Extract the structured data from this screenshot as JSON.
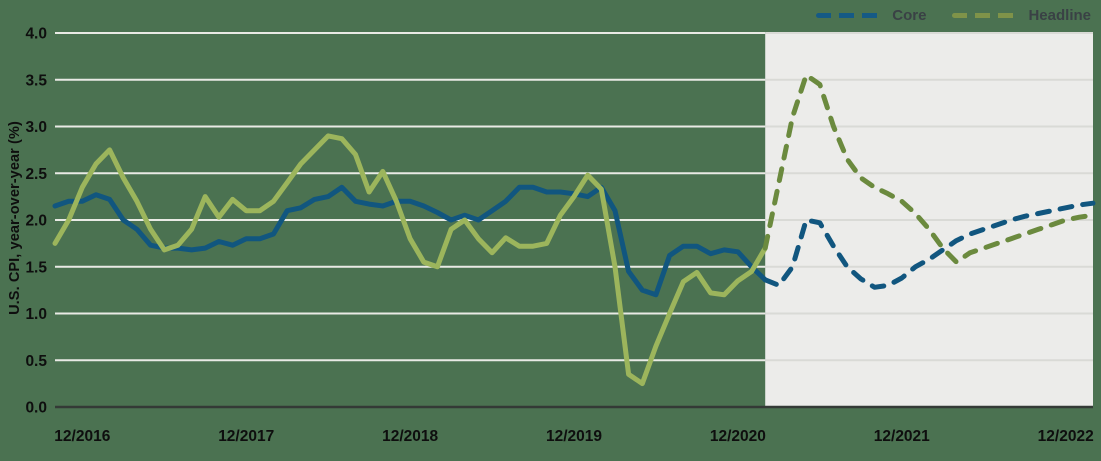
{
  "chart_data": {
    "type": "line",
    "title": "",
    "ylabel": "U.S. CPI, year-over-year (%)",
    "xlabel": "",
    "ylim": [
      0.0,
      4.0
    ],
    "ytick_step": 0.5,
    "y_tick_labels": [
      "0.0",
      "0.5",
      "1.0",
      "1.5",
      "2.0",
      "2.5",
      "3.0",
      "3.5",
      "4.0"
    ],
    "x_frequency": "monthly",
    "x_start": "10/2016",
    "x_end": "02/2023",
    "x_tick_labels": [
      "12/2016",
      "12/2017",
      "12/2018",
      "12/2019",
      "12/2020",
      "12/2021",
      "12/2022"
    ],
    "x_tick_month_indices": [
      2,
      14,
      26,
      38,
      50,
      62,
      74
    ],
    "forecast_start_index": 52,
    "forecast_start_month": "02/2021",
    "legend_position": "top-right",
    "grid": "horizontal",
    "colors": {
      "background": "#4b7251",
      "forecast_region": "#ececea",
      "gridline_historical": "#e9eae5",
      "gridline_forecast": "#d9dad6",
      "axis_line": "#343a36",
      "tick_label": "#0e0e0e",
      "legend_label": "#3a4145"
    },
    "series": [
      {
        "name": "Core",
        "color_solid": "#11567f",
        "color_dashed": "#11567f",
        "legend_color": "#155a85",
        "historical": [
          2.15,
          2.2,
          2.2,
          2.27,
          2.22,
          2.0,
          1.9,
          1.73,
          1.7,
          1.7,
          1.68,
          1.7,
          1.77,
          1.73,
          1.8,
          1.8,
          1.85,
          2.1,
          2.13,
          2.22,
          2.25,
          2.35,
          2.2,
          2.17,
          2.15,
          2.2,
          2.2,
          2.15,
          2.08,
          2.0,
          2.05,
          2.0,
          2.1,
          2.2,
          2.35,
          2.35,
          2.3,
          2.3,
          2.28,
          2.25,
          2.35,
          2.1,
          1.45,
          1.25,
          1.2,
          1.62,
          1.72,
          1.72,
          1.64,
          1.68,
          1.66,
          1.5,
          1.36
        ],
        "forecast": [
          1.36,
          1.3,
          1.5,
          2.0,
          1.97,
          1.72,
          1.5,
          1.37,
          1.28,
          1.3,
          1.38,
          1.5,
          1.58,
          1.68,
          1.78,
          1.85,
          1.9,
          1.95,
          2.0,
          2.04,
          2.07,
          2.1,
          2.13,
          2.16,
          2.18
        ]
      },
      {
        "name": "Headline",
        "color_solid": "#9cb55c",
        "color_dashed": "#6b8a3e",
        "legend_color": "#7f9349",
        "historical": [
          1.75,
          2.0,
          2.35,
          2.6,
          2.75,
          2.45,
          2.2,
          1.9,
          1.68,
          1.73,
          1.9,
          2.25,
          2.03,
          2.22,
          2.1,
          2.1,
          2.2,
          2.4,
          2.6,
          2.75,
          2.9,
          2.87,
          2.7,
          2.3,
          2.52,
          2.2,
          1.8,
          1.55,
          1.5,
          1.9,
          2.0,
          1.8,
          1.65,
          1.81,
          1.72,
          1.72,
          1.75,
          2.05,
          2.25,
          2.48,
          2.33,
          1.5,
          0.35,
          0.25,
          0.65,
          1.0,
          1.34,
          1.44,
          1.22,
          1.2,
          1.35,
          1.45,
          1.7
        ],
        "forecast": [
          1.7,
          2.4,
          3.1,
          3.55,
          3.45,
          3.0,
          2.65,
          2.45,
          2.35,
          2.28,
          2.2,
          2.07,
          1.9,
          1.7,
          1.55,
          1.65,
          1.7,
          1.75,
          1.8,
          1.85,
          1.9,
          1.95,
          2.0,
          2.03,
          2.05
        ]
      }
    ]
  }
}
